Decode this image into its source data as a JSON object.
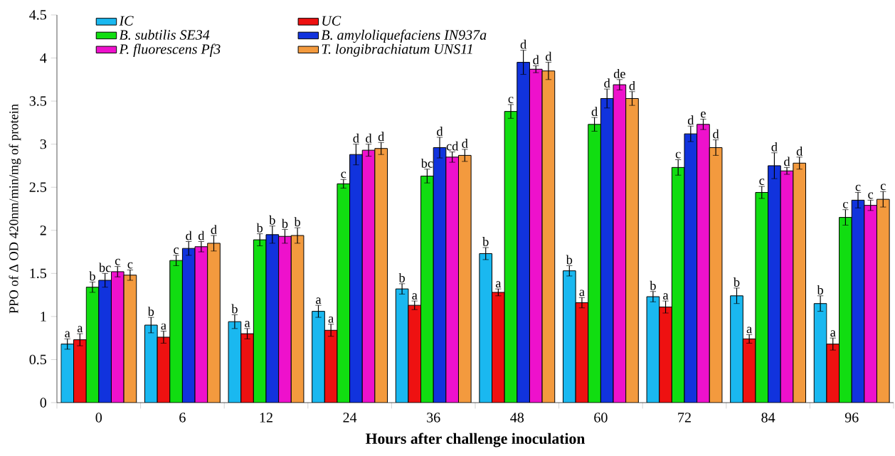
{
  "chart_data": {
    "type": "bar",
    "xlabel": "Hours after challenge inoculation",
    "ylabel": "PPO of Δ OD 420nm/min/mg  of protein",
    "categories": [
      "0",
      "6",
      "12",
      "24",
      "36",
      "48",
      "60",
      "72",
      "84",
      "96"
    ],
    "series": [
      {
        "name": "IC",
        "color": "#1ab8f0",
        "values": [
          0.68,
          0.9,
          0.94,
          1.06,
          1.32,
          1.73,
          1.53,
          1.23,
          1.24,
          1.15
        ],
        "errors": [
          0.06,
          0.09,
          0.08,
          0.07,
          0.06,
          0.07,
          0.06,
          0.06,
          0.09,
          0.09
        ],
        "value_labels": [
          "a",
          "b",
          "b",
          "a",
          "b",
          "b",
          "b",
          "b",
          "b",
          "b"
        ]
      },
      {
        "name": "UC",
        "color": "#ee1111",
        "values": [
          0.73,
          0.76,
          0.8,
          0.84,
          1.13,
          1.28,
          1.16,
          1.11,
          0.74,
          0.68
        ],
        "errors": [
          0.07,
          0.07,
          0.06,
          0.07,
          0.05,
          0.04,
          0.06,
          0.07,
          0.05,
          0.07
        ],
        "value_labels": [
          "a",
          "a",
          "a",
          "a",
          "a",
          "a",
          "a",
          "a",
          "a",
          "a"
        ]
      },
      {
        "name": "B. subtilis SE34",
        "color": "#11dd11",
        "values": [
          1.34,
          1.65,
          1.89,
          2.54,
          2.63,
          3.38,
          3.23,
          2.73,
          2.44,
          2.15
        ],
        "errors": [
          0.06,
          0.06,
          0.07,
          0.05,
          0.08,
          0.08,
          0.08,
          0.09,
          0.07,
          0.09
        ],
        "value_labels": [
          "b",
          "c",
          "b",
          "c",
          "bc",
          "c",
          "d",
          "c",
          "c",
          "c"
        ]
      },
      {
        "name": "B. amyloliquefaciens IN937a",
        "color": "#1133dd",
        "values": [
          1.42,
          1.79,
          1.95,
          2.88,
          2.96,
          3.95,
          3.53,
          3.12,
          2.75,
          2.35
        ],
        "errors": [
          0.08,
          0.08,
          0.1,
          0.12,
          0.12,
          0.14,
          0.11,
          0.09,
          0.15,
          0.09
        ],
        "value_labels": [
          "bc",
          "d",
          "b",
          "d",
          "d",
          "d",
          "d",
          "d",
          "d",
          "c"
        ]
      },
      {
        "name": "P. fluorescens Pf3",
        "color": "#ee11cc",
        "values": [
          1.52,
          1.81,
          1.93,
          2.93,
          2.85,
          3.87,
          3.69,
          3.23,
          2.69,
          2.29
        ],
        "errors": [
          0.06,
          0.06,
          0.08,
          0.07,
          0.06,
          0.04,
          0.06,
          0.06,
          0.04,
          0.06
        ],
        "value_labels": [
          "c",
          "d",
          "b",
          "d",
          "cd",
          "d",
          "de",
          "e",
          "d",
          "c"
        ]
      },
      {
        "name": "T. longibrachiatum UNS11",
        "color": "#f39a3e",
        "values": [
          1.48,
          1.85,
          1.94,
          2.95,
          2.87,
          3.85,
          3.53,
          2.96,
          2.78,
          2.36
        ],
        "errors": [
          0.06,
          0.09,
          0.09,
          0.07,
          0.07,
          0.1,
          0.08,
          0.09,
          0.07,
          0.09
        ],
        "value_labels": [
          "c",
          "d",
          "b",
          "d",
          "d",
          "d",
          "d",
          "d",
          "d",
          "c"
        ]
      }
    ],
    "ylim": [
      0,
      4.5
    ],
    "yticks": [
      0,
      0.5,
      1,
      1.5,
      2,
      2.5,
      3,
      3.5,
      4,
      4.5
    ],
    "legend": "top left"
  }
}
